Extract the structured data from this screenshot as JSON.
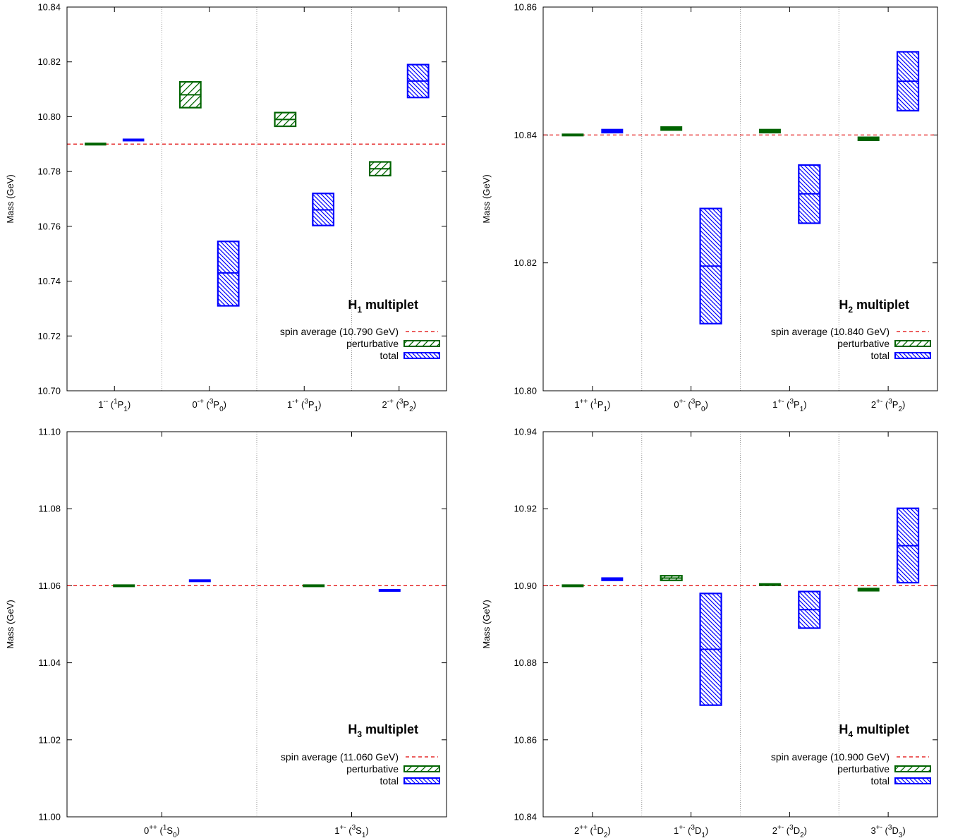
{
  "colors": {
    "perturbative": "#006400",
    "total": "#0000ff",
    "spin_average": "#e00000",
    "divider": "#999999",
    "axis": "#000000"
  },
  "chart_data": [
    {
      "type": "bar",
      "title": "H",
      "title_sub": "1",
      "title_suffix": " multiplet",
      "ylabel": "Mass (GeV)",
      "ylim": [
        10.7,
        10.84
      ],
      "yticks": [
        10.7,
        10.72,
        10.74,
        10.76,
        10.78,
        10.8,
        10.82,
        10.84
      ],
      "ytick_labels": [
        "10.70",
        "10.72",
        "10.74",
        "10.76",
        "10.78",
        "10.80",
        "10.82",
        "10.84"
      ],
      "spin_average": 10.79,
      "legend": {
        "spin_average_label": "spin average (10.790 GeV)",
        "perturbative_label": "perturbative",
        "total_label": "total"
      },
      "categories": [
        {
          "jpc": "1",
          "jpc_sup": "--",
          "wave": "1",
          "term": "P",
          "j": "1"
        },
        {
          "jpc": "0",
          "jpc_sup": "-+",
          "wave": "3",
          "term": "P",
          "j": "0"
        },
        {
          "jpc": "1",
          "jpc_sup": "-+",
          "wave": "3",
          "term": "P",
          "j": "1"
        },
        {
          "jpc": "2",
          "jpc_sup": "-+",
          "wave": "3",
          "term": "P",
          "j": "2"
        }
      ],
      "series": [
        {
          "name": "perturbative",
          "values": [
            {
              "center": 10.79,
              "low": 10.7898,
              "high": 10.7902
            },
            {
              "center": 10.808,
              "low": 10.8033,
              "high": 10.8127
            },
            {
              "center": 10.799,
              "low": 10.7965,
              "high": 10.8015
            },
            {
              "center": 10.781,
              "low": 10.7785,
              "high": 10.7835
            }
          ]
        },
        {
          "name": "total",
          "values": [
            {
              "center": 10.7915,
              "low": 10.7912,
              "high": 10.7918
            },
            {
              "center": 10.743,
              "low": 10.731,
              "high": 10.7545
            },
            {
              "center": 10.766,
              "low": 10.7603,
              "high": 10.772
            },
            {
              "center": 10.813,
              "low": 10.807,
              "high": 10.819
            }
          ]
        }
      ]
    },
    {
      "type": "bar",
      "title": "H",
      "title_sub": "2",
      "title_suffix": " multiplet",
      "ylabel": "Mass (GeV)",
      "ylim": [
        10.8,
        10.86
      ],
      "yticks": [
        10.8,
        10.82,
        10.84,
        10.86
      ],
      "ytick_labels": [
        "10.80",
        "10.82",
        "10.84",
        "10.86"
      ],
      "spin_average": 10.84,
      "legend": {
        "spin_average_label": "spin average (10.840 GeV)",
        "perturbative_label": "perturbative",
        "total_label": "total"
      },
      "categories": [
        {
          "jpc": "1",
          "jpc_sup": "++",
          "wave": "1",
          "term": "P",
          "j": "1"
        },
        {
          "jpc": "0",
          "jpc_sup": "+-",
          "wave": "3",
          "term": "P",
          "j": "0"
        },
        {
          "jpc": "1",
          "jpc_sup": "+-",
          "wave": "3",
          "term": "P",
          "j": "1"
        },
        {
          "jpc": "2",
          "jpc_sup": "+-",
          "wave": "3",
          "term": "P",
          "j": "2"
        }
      ],
      "series": [
        {
          "name": "perturbative",
          "values": [
            {
              "center": 10.84,
              "low": 10.8399,
              "high": 10.8401
            },
            {
              "center": 10.841,
              "low": 10.8407,
              "high": 10.8413
            },
            {
              "center": 10.8406,
              "low": 10.8403,
              "high": 10.8409
            },
            {
              "center": 10.8394,
              "low": 10.8391,
              "high": 10.8397
            }
          ]
        },
        {
          "name": "total",
          "values": [
            {
              "center": 10.8406,
              "low": 10.8403,
              "high": 10.8409
            },
            {
              "center": 10.8195,
              "low": 10.8105,
              "high": 10.8285
            },
            {
              "center": 10.8308,
              "low": 10.8262,
              "high": 10.8353
            },
            {
              "center": 10.8484,
              "low": 10.8438,
              "high": 10.853
            }
          ]
        }
      ]
    },
    {
      "type": "bar",
      "title": "H",
      "title_sub": "3",
      "title_suffix": " multiplet",
      "ylabel": "Mass (GeV)",
      "ylim": [
        11.0,
        11.1
      ],
      "yticks": [
        11.0,
        11.02,
        11.04,
        11.06,
        11.08,
        11.1
      ],
      "ytick_labels": [
        "11.00",
        "11.02",
        "11.04",
        "11.06",
        "11.08",
        "11.10"
      ],
      "spin_average": 11.06,
      "legend": {
        "spin_average_label": "spin average (11.060 GeV)",
        "perturbative_label": "perturbative",
        "total_label": "total"
      },
      "categories": [
        {
          "jpc": "0",
          "jpc_sup": "++",
          "wave": "1",
          "term": "S",
          "j": "0"
        },
        {
          "jpc": "1",
          "jpc_sup": "+-",
          "wave": "3",
          "term": "S",
          "j": "1"
        }
      ],
      "series": [
        {
          "name": "perturbative",
          "values": [
            {
              "center": 11.06,
              "low": 11.0599,
              "high": 11.0601
            },
            {
              "center": 11.06,
              "low": 11.0599,
              "high": 11.0601
            }
          ]
        },
        {
          "name": "total",
          "values": [
            {
              "center": 11.0613,
              "low": 11.0611,
              "high": 11.0616
            },
            {
              "center": 11.0588,
              "low": 11.0586,
              "high": 11.0591
            }
          ]
        }
      ]
    },
    {
      "type": "bar",
      "title": "H",
      "title_sub": "4",
      "title_suffix": " multiplet",
      "ylabel": "Mass (GeV)",
      "ylim": [
        10.84,
        10.94
      ],
      "yticks": [
        10.84,
        10.86,
        10.88,
        10.9,
        10.92,
        10.94
      ],
      "ytick_labels": [
        "10.84",
        "10.86",
        "10.88",
        "10.90",
        "10.92",
        "10.94"
      ],
      "spin_average": 10.9,
      "legend": {
        "spin_average_label": "spin average (10.900 GeV)",
        "perturbative_label": "perturbative",
        "total_label": "total"
      },
      "categories": [
        {
          "jpc": "2",
          "jpc_sup": "++",
          "wave": "1",
          "term": "D",
          "j": "2"
        },
        {
          "jpc": "1",
          "jpc_sup": "+-",
          "wave": "3",
          "term": "D",
          "j": "1"
        },
        {
          "jpc": "2",
          "jpc_sup": "+-",
          "wave": "3",
          "term": "D",
          "j": "2"
        },
        {
          "jpc": "3",
          "jpc_sup": "+-",
          "wave": "3",
          "term": "D",
          "j": "3"
        }
      ],
      "series": [
        {
          "name": "perturbative",
          "values": [
            {
              "center": 10.9,
              "low": 10.8999,
              "high": 10.9001
            },
            {
              "center": 10.902,
              "low": 10.9014,
              "high": 10.9026
            },
            {
              "center": 10.9003,
              "low": 10.9001,
              "high": 10.9005
            },
            {
              "center": 10.899,
              "low": 10.8986,
              "high": 10.8994
            }
          ]
        },
        {
          "name": "total",
          "values": [
            {
              "center": 10.9017,
              "low": 10.9013,
              "high": 10.9021
            },
            {
              "center": 10.8835,
              "low": 10.869,
              "high": 10.898
            },
            {
              "center": 10.8938,
              "low": 10.889,
              "high": 10.8985
            },
            {
              "center": 10.9104,
              "low": 10.9008,
              "high": 10.9201
            }
          ]
        }
      ]
    }
  ]
}
